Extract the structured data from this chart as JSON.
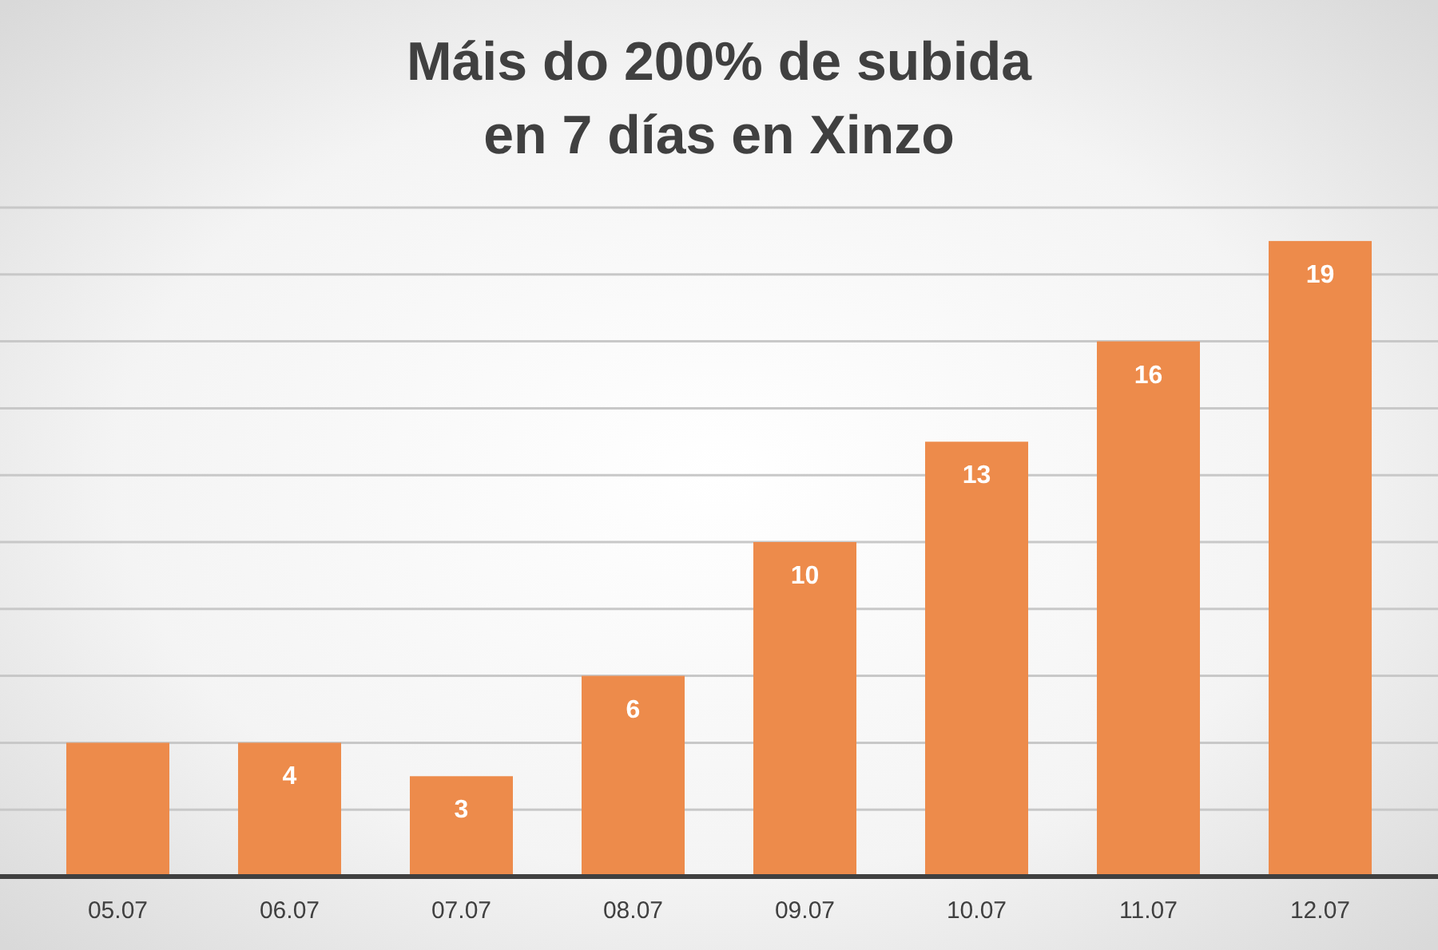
{
  "chart_data": {
    "type": "bar",
    "title": "Máis do 200% de subida\nen 7 días en Xinzo",
    "categories": [
      "05.07",
      "06.07",
      "07.07",
      "08.07",
      "09.07",
      "10.07",
      "11.07",
      "12.07"
    ],
    "values": [
      4,
      4,
      3,
      6,
      10,
      13,
      16,
      19
    ],
    "value_labels": [
      null,
      "4",
      "3",
      "6",
      "10",
      "13",
      "16",
      "19"
    ],
    "color": "#ed8b4b",
    "ylim": [
      0,
      20
    ],
    "yticks": [
      {
        "value": 0,
        "label": null
      },
      {
        "value": 2,
        "label": null
      },
      {
        "value": 4,
        "label": null
      },
      {
        "value": 6,
        "label": null
      },
      {
        "value": 8,
        "label": null
      },
      {
        "value": 10,
        "label": null
      },
      {
        "value": 12,
        "label": null
      },
      {
        "value": 14,
        "label": null
      },
      {
        "value": 16,
        "label": null
      },
      {
        "value": 18,
        "label": null
      },
      {
        "value": 20,
        "label": null
      }
    ],
    "grid": "y",
    "tick_labels": "x"
  }
}
